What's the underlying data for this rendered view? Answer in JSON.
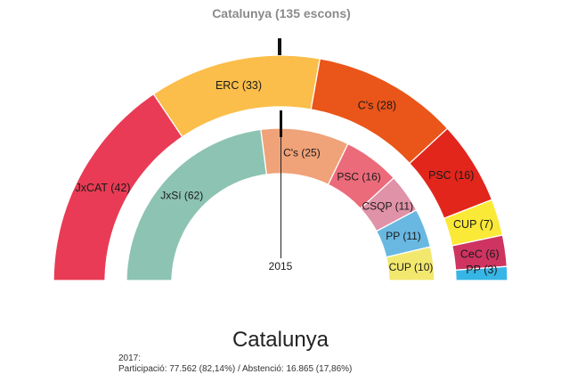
{
  "header": {
    "title": "Catalunya (135 escons)"
  },
  "chart_data": {
    "type": "parliament-semicircle",
    "total_seats": 135,
    "outer": {
      "year": "2017",
      "segments": [
        {
          "party": "JxCAT",
          "seats": 42,
          "label": "JxCAT (42)",
          "color": "#e93b55"
        },
        {
          "party": "ERC",
          "seats": 33,
          "label": "ERC (33)",
          "color": "#fbbe4a"
        },
        {
          "party": "C's",
          "seats": 28,
          "label": "C's (28)",
          "color": "#ea5519"
        },
        {
          "party": "PSC",
          "seats": 16,
          "label": "PSC (16)",
          "color": "#e2261c"
        },
        {
          "party": "CUP",
          "seats": 7,
          "label": "CUP (7)",
          "color": "#fbe937"
        },
        {
          "party": "CeC",
          "seats": 6,
          "label": "CeC (6)",
          "color": "#cf3461"
        },
        {
          "party": "PP",
          "seats": 3,
          "label": "PP (3)",
          "color": "#36b5e6"
        }
      ]
    },
    "inner": {
      "year": "2015",
      "segments": [
        {
          "party": "JxSí",
          "seats": 62,
          "label": "JxSí (62)",
          "color": "#8dc3b3"
        },
        {
          "party": "C's",
          "seats": 25,
          "label": "C's (25)",
          "color": "#f0a278"
        },
        {
          "party": "PSC",
          "seats": 16,
          "label": "PSC (16)",
          "color": "#ec6b7a"
        },
        {
          "party": "CSQP",
          "seats": 11,
          "label": "CSQP (11)",
          "color": "#e092a8"
        },
        {
          "party": "PP",
          "seats": 11,
          "label": "PP (11)",
          "color": "#69b8e2"
        },
        {
          "party": "CUP",
          "seats": 10,
          "label": "CUP (10)",
          "color": "#f2e86e"
        }
      ]
    }
  },
  "footer": {
    "title": "Catalunya",
    "year": "2017:",
    "turnout": "Participació: 77.562 (82,14%) / Abstenció: 16.865 (17,86%)"
  }
}
